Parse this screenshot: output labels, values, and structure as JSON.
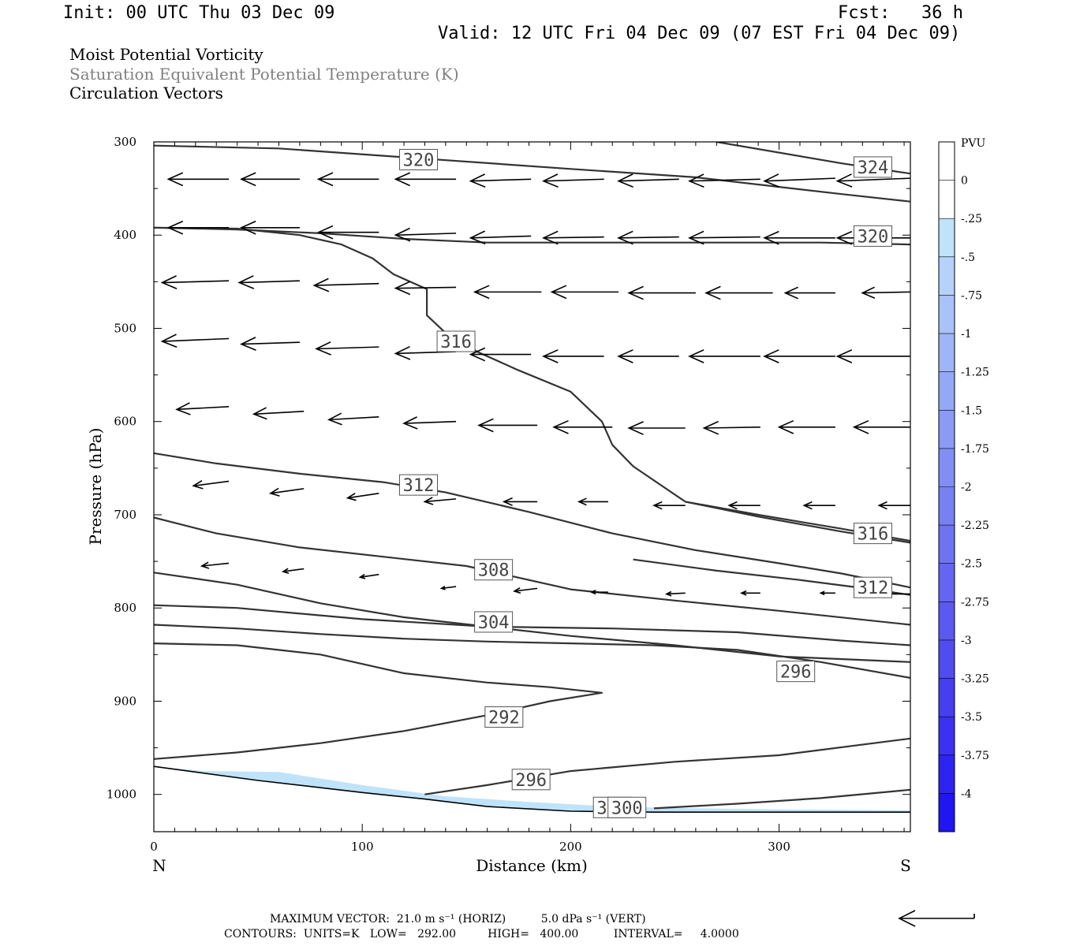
{
  "header": {
    "init": "Init: 00 UTC Thu 03 Dec 09",
    "fcst": "Fcst:   36 h",
    "valid": "Valid: 12 UTC Fri 04 Dec 09 (07 EST Fri 04 Dec 09)"
  },
  "fields": [
    {
      "label": "Moist Potential Vorticity",
      "color": "#000000"
    },
    {
      "label": "Saturation Equivalent Potential Temperature (K)",
      "color": "#808080"
    },
    {
      "label": "Circulation Vectors",
      "color": "#000000"
    }
  ],
  "chart_data": {
    "type": "cross-section",
    "xlabel": "Distance (km)",
    "ylabel": "Pressure (hPa)",
    "xlim": [
      0,
      363
    ],
    "ylim": [
      300,
      1040
    ],
    "y_scale": "linear, inverted",
    "x_ticks": [
      0,
      100,
      200,
      300
    ],
    "x_tick_labels": [
      "0",
      "100",
      "200",
      "300"
    ],
    "y_ticks": [
      300,
      400,
      500,
      600,
      700,
      800,
      900,
      1000
    ],
    "y_tick_labels": [
      "300",
      "400",
      "500",
      "600",
      "700",
      "800",
      "900",
      "1000"
    ],
    "end_labels": {
      "left": "N",
      "right": "S"
    },
    "terrain_surface": [
      [
        0,
        970
      ],
      [
        50,
        985
      ],
      [
        100,
        998
      ],
      [
        130,
        1005
      ],
      [
        160,
        1013
      ],
      [
        200,
        1018
      ],
      [
        240,
        1019
      ],
      [
        300,
        1019
      ],
      [
        363,
        1019
      ]
    ],
    "theta_e_contours": [
      {
        "label": "320",
        "points": [
          [
            0,
            304
          ],
          [
            60,
            307
          ],
          [
            130,
            318
          ],
          [
            200,
            329
          ],
          [
            260,
            338
          ],
          [
            330,
            356
          ],
          [
            363,
            364
          ]
        ],
        "label_at": [
          127,
          319
        ]
      },
      {
        "label": "324",
        "points": [
          [
            270,
            300
          ],
          [
            330,
            323
          ],
          [
            363,
            334
          ]
        ],
        "label_at": [
          345,
          327
        ]
      },
      {
        "label": "320",
        "points": [
          [
            0,
            392
          ],
          [
            40,
            394
          ],
          [
            80,
            398
          ],
          [
            120,
            404
          ],
          [
            160,
            408
          ],
          [
            200,
            408
          ],
          [
            260,
            408
          ],
          [
            320,
            408
          ],
          [
            363,
            410
          ]
        ],
        "label_at": [
          345,
          401
        ]
      },
      {
        "label": "316",
        "points": [
          [
            0,
            392
          ],
          [
            40,
            393
          ],
          [
            70,
            400
          ],
          [
            90,
            410
          ],
          [
            105,
            425
          ],
          [
            115,
            442
          ],
          [
            131,
            458
          ],
          [
            131,
            486
          ],
          [
            140,
            505
          ],
          [
            155,
            525
          ],
          [
            175,
            545
          ],
          [
            200,
            568
          ],
          [
            215,
            600
          ],
          [
            220,
            625
          ],
          [
            230,
            648
          ],
          [
            255,
            686
          ],
          [
            290,
            702
          ],
          [
            330,
            718
          ],
          [
            363,
            730
          ]
        ],
        "label_at": [
          145,
          514
        ]
      },
      {
        "label": "312",
        "points": [
          [
            0,
            634
          ],
          [
            30,
            645
          ],
          [
            70,
            656
          ],
          [
            110,
            665
          ],
          [
            140,
            676
          ],
          [
            180,
            697
          ],
          [
            220,
            720
          ],
          [
            260,
            738
          ],
          [
            300,
            752
          ],
          [
            330,
            763
          ],
          [
            363,
            778
          ]
        ],
        "label_at": [
          127,
          668
        ]
      },
      {
        "label": "316",
        "points": [
          [
            255,
            686
          ],
          [
            290,
            700
          ],
          [
            330,
            715
          ],
          [
            363,
            728
          ]
        ],
        "label_at": [
          345,
          720
        ]
      },
      {
        "label": "312",
        "points": [
          [
            230,
            748
          ],
          [
            270,
            760
          ],
          [
            310,
            770
          ],
          [
            345,
            780
          ],
          [
            363,
            786
          ]
        ],
        "label_at": [
          345,
          778
        ]
      },
      {
        "label": "308",
        "points": [
          [
            0,
            703
          ],
          [
            30,
            720
          ],
          [
            70,
            735
          ],
          [
            110,
            745
          ],
          [
            150,
            755
          ],
          [
            200,
            780
          ],
          [
            250,
            792
          ],
          [
            300,
            803
          ],
          [
            363,
            818
          ]
        ],
        "label_at": [
          163,
          759
        ]
      },
      {
        "label": "304",
        "points": [
          [
            0,
            762
          ],
          [
            40,
            775
          ],
          [
            80,
            795
          ],
          [
            120,
            810
          ],
          [
            160,
            820
          ],
          [
            200,
            830
          ],
          [
            250,
            840
          ],
          [
            300,
            852
          ],
          [
            363,
            858
          ]
        ],
        "label_at": [
          163,
          815
        ]
      },
      {
        "label": "300",
        "points": [
          [
            0,
            797
          ],
          [
            40,
            800
          ],
          [
            100,
            812
          ],
          [
            160,
            820
          ],
          [
            220,
            822
          ],
          [
            280,
            826
          ],
          [
            330,
            835
          ],
          [
            363,
            840
          ]
        ],
        "label_at": [
          220,
          1014
        ]
      },
      {
        "label": "296",
        "points": [
          [
            0,
            818
          ],
          [
            40,
            822
          ],
          [
            80,
            828
          ],
          [
            120,
            833
          ],
          [
            160,
            836
          ],
          [
            200,
            838
          ],
          [
            240,
            840
          ],
          [
            280,
            845
          ],
          [
            320,
            858
          ],
          [
            363,
            875
          ]
        ],
        "label_at": [
          308,
          868
        ]
      },
      {
        "label": "292",
        "points": [
          [
            0,
            838
          ],
          [
            40,
            840
          ],
          [
            80,
            850
          ],
          [
            120,
            870
          ],
          [
            160,
            880
          ],
          [
            190,
            885
          ],
          [
            215,
            891
          ],
          [
            190,
            900
          ],
          [
            160,
            915
          ],
          [
            120,
            932
          ],
          [
            80,
            945
          ],
          [
            40,
            955
          ],
          [
            0,
            962
          ]
        ],
        "label_at": [
          168,
          917
        ]
      },
      {
        "label": "296",
        "points": [
          [
            130,
            1000
          ],
          [
            160,
            990
          ],
          [
            200,
            975
          ],
          [
            250,
            965
          ],
          [
            300,
            958
          ],
          [
            363,
            940
          ]
        ],
        "label_at": [
          181,
          984
        ]
      },
      {
        "label": "300",
        "points": [
          [
            240,
            1015
          ],
          [
            280,
            1010
          ],
          [
            320,
            1004
          ],
          [
            363,
            995
          ]
        ],
        "label_at": [
          227,
          1014
        ]
      }
    ],
    "mpv_negative_region": {
      "value_pvu": -0.25,
      "points": [
        [
          25,
          975
        ],
        [
          60,
          976
        ],
        [
          100,
          990
        ],
        [
          140,
          1002
        ],
        [
          180,
          1008
        ],
        [
          220,
          1013
        ],
        [
          260,
          1015
        ],
        [
          300,
          1016
        ],
        [
          363,
          1017
        ]
      ]
    },
    "colorbar": {
      "unit": "PVU",
      "labels": [
        "0",
        "-.25",
        "-.5",
        "-.75",
        "-1",
        "-1.25",
        "-1.5",
        "-1.75",
        "-2",
        "-2.25",
        "-2.5",
        "-2.75",
        "-3",
        "-3.25",
        "-3.5",
        "-3.75",
        "-4"
      ],
      "colors": [
        "#ffffff",
        "#ffffff",
        "#bfe3fa",
        "#b6d2fa",
        "#a9c2f8",
        "#9fb5f6",
        "#95a8f6",
        "#8b9bf4",
        "#828ef3",
        "#7881f2",
        "#6e74f1",
        "#6466f1",
        "#5a59f0",
        "#504cef",
        "#453ff0",
        "#3a32f0",
        "#2e24f1",
        "#1f16f2"
      ]
    },
    "vectors": [
      [
        [
          7,
          340
        ],
        [
          36,
          340
        ],
        [
          42,
          340
        ],
        [
          70,
          340
        ],
        [
          79,
          340
        ],
        [
          108,
          340
        ],
        [
          116,
          340
        ],
        [
          145,
          340
        ],
        [
          152,
          342
        ],
        [
          181,
          340
        ],
        [
          187,
          342
        ],
        [
          216,
          340
        ],
        [
          223,
          342
        ],
        [
          252,
          340
        ],
        [
          257,
          342
        ],
        [
          291,
          340
        ],
        [
          293,
          342
        ],
        [
          327,
          339
        ],
        [
          328,
          342
        ],
        [
          363,
          339
        ]
      ],
      [
        [
          7,
          392
        ],
        [
          36,
          392
        ],
        [
          42,
          392
        ],
        [
          70,
          392
        ],
        [
          79,
          397
        ],
        [
          108,
          397
        ],
        [
          116,
          400
        ],
        [
          145,
          398
        ],
        [
          152,
          403
        ],
        [
          181,
          401
        ],
        [
          187,
          403
        ],
        [
          216,
          402
        ],
        [
          223,
          403
        ],
        [
          252,
          402
        ],
        [
          257,
          403
        ],
        [
          291,
          402
        ],
        [
          293,
          403
        ],
        [
          327,
          403
        ],
        [
          328,
          403
        ],
        [
          363,
          403
        ]
      ],
      [
        [
          4,
          451
        ],
        [
          36,
          449
        ],
        [
          41,
          451
        ],
        [
          70,
          449
        ],
        [
          77,
          454
        ],
        [
          108,
          452
        ],
        [
          116,
          457
        ],
        [
          145,
          456
        ],
        [
          154,
          461
        ],
        [
          186,
          461
        ],
        [
          191,
          461
        ],
        [
          223,
          461
        ],
        [
          228,
          462
        ],
        [
          260,
          462
        ],
        [
          265,
          462
        ],
        [
          297,
          462
        ],
        [
          303,
          462
        ],
        [
          327,
          462
        ],
        [
          340,
          462
        ],
        [
          363,
          461
        ]
      ],
      [
        [
          4,
          514
        ],
        [
          36,
          511
        ],
        [
          42,
          517
        ],
        [
          70,
          515
        ],
        [
          78,
          522
        ],
        [
          108,
          520
        ],
        [
          116,
          527
        ],
        [
          145,
          525
        ],
        [
          152,
          528
        ],
        [
          181,
          528
        ],
        [
          187,
          530
        ],
        [
          216,
          530
        ],
        [
          223,
          530
        ],
        [
          252,
          530
        ],
        [
          257,
          530
        ],
        [
          291,
          530
        ],
        [
          293,
          530
        ],
        [
          327,
          530
        ],
        [
          328,
          530
        ],
        [
          363,
          530
        ]
      ],
      [
        [
          11,
          587
        ],
        [
          36,
          584
        ],
        [
          48,
          592
        ],
        [
          72,
          589
        ],
        [
          84,
          598
        ],
        [
          108,
          595
        ],
        [
          120,
          602
        ],
        [
          145,
          600
        ],
        [
          156,
          604
        ],
        [
          184,
          604
        ],
        [
          192,
          606
        ],
        [
          220,
          606
        ],
        [
          228,
          607
        ],
        [
          255,
          607
        ],
        [
          264,
          607
        ],
        [
          291,
          606
        ],
        [
          300,
          606
        ],
        [
          327,
          606
        ],
        [
          336,
          606
        ],
        [
          363,
          606
        ]
      ],
      [
        [
          19,
          669
        ],
        [
          36,
          664
        ],
        [
          56,
          677
        ],
        [
          72,
          672
        ],
        [
          93,
          682
        ],
        [
          108,
          677
        ],
        [
          130,
          686
        ],
        [
          145,
          683
        ],
        [
          168,
          686
        ],
        [
          184,
          686
        ],
        [
          204,
          686
        ],
        [
          218,
          686
        ],
        [
          240,
          690
        ],
        [
          255,
          690
        ],
        [
          276,
          690
        ],
        [
          291,
          690
        ],
        [
          312,
          690
        ],
        [
          327,
          690
        ],
        [
          348,
          690
        ],
        [
          363,
          690
        ]
      ],
      [
        [
          23,
          755
        ],
        [
          36,
          752
        ],
        [
          62,
          761
        ],
        [
          72,
          758
        ],
        [
          99,
          767
        ],
        [
          108,
          764
        ],
        [
          138,
          779
        ],
        [
          145,
          777
        ],
        [
          173,
          782
        ],
        [
          184,
          779
        ],
        [
          210,
          783
        ],
        [
          218,
          783
        ],
        [
          246,
          785
        ],
        [
          255,
          784
        ],
        [
          282,
          784
        ],
        [
          291,
          784
        ],
        [
          320,
          784
        ],
        [
          327,
          784
        ],
        [
          350,
          785
        ],
        [
          363,
          785
        ]
      ]
    ]
  },
  "footer": {
    "line1": "MAXIMUM VECTOR:  21.0 m s⁻¹ (HORIZ)          5.0 dPa s⁻¹ (VERT)",
    "line2": "CONTOURS:  UNITS=K   LOW=   292.00         HIGH=   400.00          INTERVAL=     4.0000"
  }
}
